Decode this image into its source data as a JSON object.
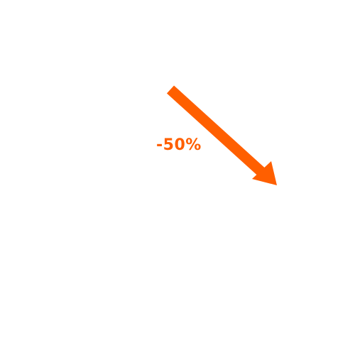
{
  "graphic": {
    "label": "-50%",
    "arrow_icon": "arrow-down-right-icon",
    "color": "#ff5f00"
  }
}
